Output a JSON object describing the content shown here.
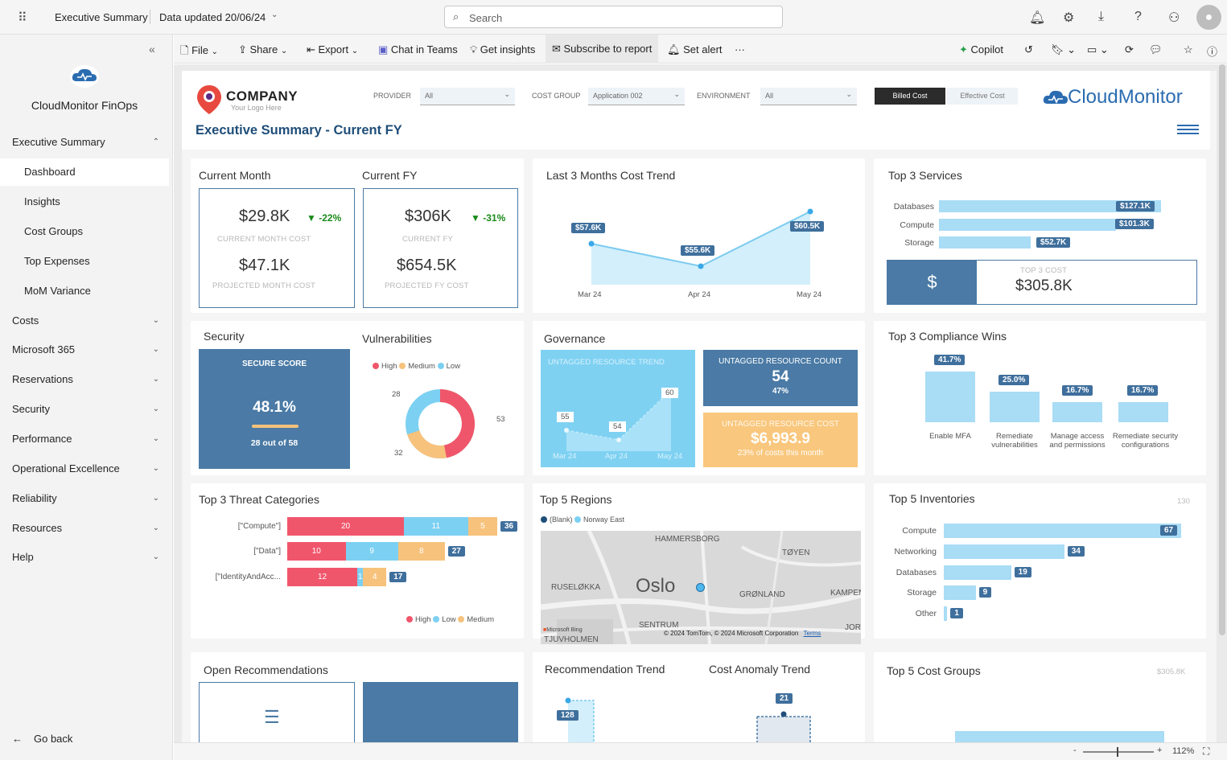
{
  "topbar": {
    "report_name": "Executive Summary",
    "data_updated": "Data updated 20/06/24",
    "search_placeholder": "Search"
  },
  "sidebar": {
    "app_name": "CloudMonitor FinOps",
    "items": [
      {
        "label": "Executive Summary"
      },
      {
        "label": "Dashboard"
      },
      {
        "label": "Insights"
      },
      {
        "label": "Cost Groups"
      },
      {
        "label": "Top Expenses"
      },
      {
        "label": "MoM Variance"
      },
      {
        "label": "Costs"
      },
      {
        "label": "Microsoft 365"
      },
      {
        "label": "Reservations"
      },
      {
        "label": "Security"
      },
      {
        "label": "Performance"
      },
      {
        "label": "Operational Excellence"
      },
      {
        "label": "Reliability"
      },
      {
        "label": "Resources"
      },
      {
        "label": "Help"
      }
    ],
    "go_back": "Go back"
  },
  "commands": {
    "file": "File",
    "share": "Share",
    "export": "Export",
    "chat": "Chat in Teams",
    "insights": "Get insights",
    "subscribe": "Subscribe to report",
    "alert": "Set alert",
    "more": "···",
    "copilot": "Copilot"
  },
  "header": {
    "company": "COMPANY",
    "company_sub": "Your Logo Here",
    "title": "Executive Summary - Current FY",
    "provider_label": "PROVIDER",
    "provider_value": "All",
    "costgroup_label": "COST GROUP",
    "costgroup_value": "Application 002",
    "env_label": "ENVIRONMENT",
    "env_value": "All",
    "billed": "Billed Cost",
    "effective": "Effective Cost",
    "brand": "CloudMonitor"
  },
  "current_month": {
    "title": "Current Month",
    "value": "$29.8K",
    "change": "-22%",
    "label": "CURRENT MONTH COST",
    "projected": "$47.1K",
    "projected_label": "PROJECTED MONTH COST"
  },
  "current_fy": {
    "title": "Current FY",
    "value": "$306K",
    "change": "-31%",
    "label": "CURRENT FY",
    "projected": "$654.5K",
    "projected_label": "PROJECTED FY COST"
  },
  "trend": {
    "title": "Last 3 Months Cost Trend",
    "labels": [
      "$57.6K",
      "$55.6K",
      "$60.5K"
    ],
    "months": [
      "Mar 24",
      "Apr 24",
      "May 24"
    ]
  },
  "top_services": {
    "title": "Top 3 Services",
    "items": [
      {
        "name": "Databases",
        "value": "$127.1K",
        "num": 127.1
      },
      {
        "name": "Compute",
        "value": "$101.3K",
        "num": 101.3
      },
      {
        "name": "Storage",
        "value": "$52.7K",
        "num": 52.7
      }
    ],
    "total_label": "TOP 3 COST",
    "total": "$305.8K",
    "currency": "$"
  },
  "security": {
    "title": "Security",
    "score_label": "SECURE SCORE",
    "score": "48.1%",
    "detail": "28 out of 58"
  },
  "vulnerabilities": {
    "title": "Vulnerabilities",
    "legend": [
      "High",
      "Medium",
      "Low"
    ],
    "values": {
      "high": "53",
      "medium": "32",
      "low": "28"
    }
  },
  "governance": {
    "title": "Governance",
    "trend_title": "UNTAGGED RESOURCE TREND",
    "trend_values": [
      "55",
      "54",
      "60"
    ],
    "trend_months": [
      "Mar 24",
      "Apr 24",
      "May 24"
    ],
    "count_title": "UNTAGGED RESOURCE COUNT",
    "count": "54",
    "count_pct": "47%",
    "cost_title": "UNTAGGED RESOURCE COST",
    "cost": "$6,993.9",
    "cost_note": "23% of costs this month"
  },
  "compliance": {
    "title": "Top 3 Compliance Wins",
    "items": [
      {
        "label": "Enable MFA",
        "pct": "41.7%",
        "num": 41.7
      },
      {
        "label": "Remediate vulnerabilities",
        "pct": "25.0%",
        "num": 25.0
      },
      {
        "label": "Manage access and permissions",
        "pct": "16.7%",
        "num": 16.7
      },
      {
        "label": "Remediate security configurations",
        "pct": "16.7%",
        "num": 16.7
      }
    ]
  },
  "threats": {
    "title": "Top 3 Threat Categories",
    "rows": [
      {
        "label": "[\"Compute\"]",
        "high": 20,
        "low": 11,
        "medium": 5,
        "total": "36"
      },
      {
        "label": "[\"Data\"]",
        "high": 10,
        "low": 9,
        "medium": 8,
        "total": "27"
      },
      {
        "label": "[\"IdentityAndAcc...",
        "high": 12,
        "low": 1,
        "medium": 4,
        "total": "17"
      }
    ],
    "legend": [
      "High",
      "Low",
      "Medium"
    ]
  },
  "regions": {
    "title": "Top 5 Regions",
    "legend": [
      "(Blank)",
      "Norway East"
    ],
    "map_labels": [
      "HAMMERSBORG",
      "TØYEN",
      "RUSELØKKA",
      "Oslo",
      "GRØNLAND",
      "KAMPEN",
      "SENTRUM",
      "TJUVHOLMEN",
      "JORI"
    ],
    "attribution": "© 2024 TomTom, © 2024 Microsoft Corporation",
    "terms": "Terms",
    "bing": "Microsoft Bing"
  },
  "inventories": {
    "title": "Top 5 Inventories",
    "max": "130",
    "items": [
      {
        "name": "Compute",
        "value": "67",
        "num": 67
      },
      {
        "name": "Networking",
        "value": "34",
        "num": 34
      },
      {
        "name": "Databases",
        "value": "19",
        "num": 19
      },
      {
        "name": "Storage",
        "value": "9",
        "num": 9
      },
      {
        "name": "Other",
        "value": "1",
        "num": 1
      }
    ]
  },
  "bottom": {
    "open_recs": "Open Recommendations",
    "rec_trend": "Recommendation Trend",
    "rec_value": "128",
    "anomaly": "Cost Anomaly Trend",
    "anomaly_value": "21",
    "cost_groups": "Top 5 Cost Groups",
    "cost_groups_max": "$305.8K"
  },
  "status": {
    "zoom": "112%"
  },
  "colors": {
    "accent": "#4a7aa5",
    "high": "#f0566b",
    "medium": "#f7c27c",
    "low": "#7cd0f2",
    "lightblue": "#a9dcf5"
  }
}
